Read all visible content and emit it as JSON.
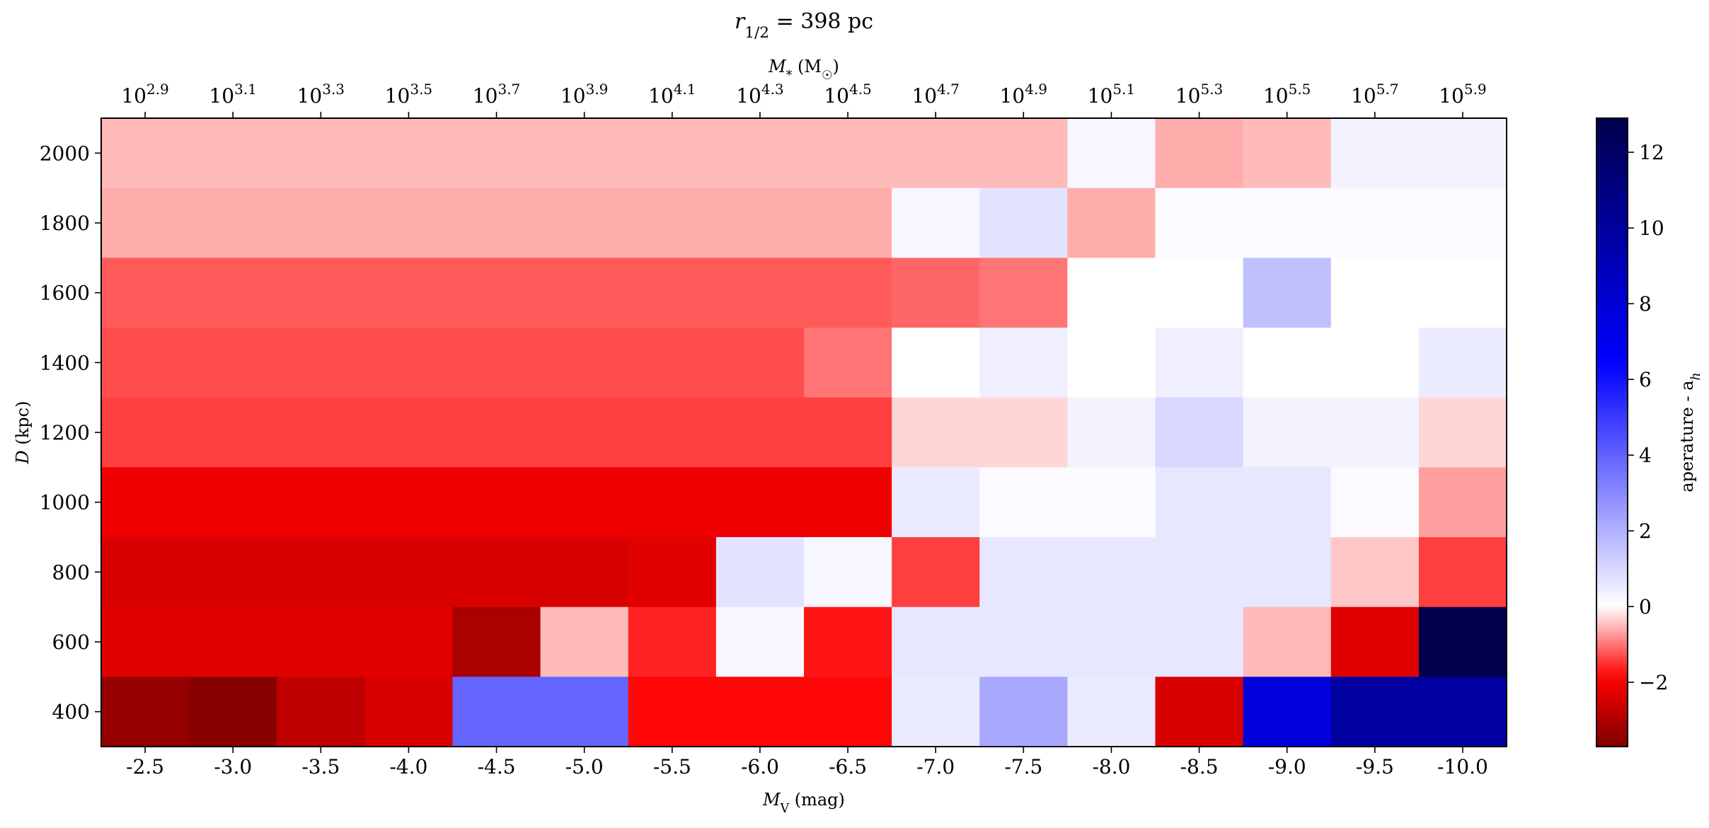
{
  "chart_data": {
    "type": "heatmap",
    "title_math": {
      "base": "r",
      "sub": "1/2",
      "rest": " = 398 pc"
    },
    "xlabel_bottom": {
      "base": "M",
      "sub": "V",
      "rest": " (mag)"
    },
    "xlabel_top": {
      "base": "M",
      "sub": "*",
      "rest": " (M",
      "sub2": "☉",
      "close": ")"
    },
    "ylabel": {
      "base": "D",
      "rest": " (kpc)"
    },
    "colorbar_label": {
      "base": "aperature - a",
      "sub": "h"
    },
    "x_categories": [
      "-2.5",
      "-3.0",
      "-3.5",
      "-4.0",
      "-4.5",
      "-5.0",
      "-5.5",
      "-6.0",
      "-6.5",
      "-7.0",
      "-7.5",
      "-8.0",
      "-8.5",
      "-9.0",
      "-9.5",
      "-10.0"
    ],
    "top_ticks": [
      {
        "at": "-2.5",
        "exp": "2.9"
      },
      {
        "at": "-3.0",
        "exp": "3.1"
      },
      {
        "at": "-3.5",
        "exp": "3.3"
      },
      {
        "at": "-4.0",
        "exp": "3.5"
      },
      {
        "at": "-4.5",
        "exp": "3.7"
      },
      {
        "at": "-5.0",
        "exp": "3.9"
      },
      {
        "at": "-5.5",
        "exp": "4.1"
      },
      {
        "at": "-6.0",
        "exp": "4.3"
      },
      {
        "at": "-6.5",
        "exp": "4.5"
      },
      {
        "at": "-7.0",
        "exp": "4.7"
      },
      {
        "at": "-7.5",
        "exp": "4.9"
      },
      {
        "at": "-8.0",
        "exp": "5.1"
      },
      {
        "at": "-8.5",
        "exp": "5.3"
      },
      {
        "at": "-9.0",
        "exp": "5.5"
      },
      {
        "at": "-9.5",
        "exp": "5.7"
      },
      {
        "at": "-10.0",
        "exp": "5.9"
      }
    ],
    "top_tick_base": "10",
    "y_rows": [
      2000,
      1800,
      1600,
      1400,
      1200,
      1000,
      800,
      600,
      400
    ],
    "ylim": [
      300,
      2100
    ],
    "y_ticks": [
      2000,
      1800,
      1600,
      1400,
      1200,
      1000,
      800,
      600,
      400
    ],
    "colorbar": {
      "cmap": "seismic",
      "range": [
        -3.7,
        12.9
      ],
      "ticks": [
        12,
        10,
        8,
        6,
        4,
        2,
        0,
        -2
      ],
      "tick_labels": [
        "12",
        "10",
        "8",
        "6",
        "4",
        "2",
        "0",
        "−2"
      ]
    },
    "values": [
      [
        -0.5,
        -0.5,
        -0.5,
        -0.5,
        -0.5,
        -0.5,
        -0.5,
        -0.5,
        -0.5,
        -0.5,
        -0.5,
        0.2,
        -0.6,
        -0.5,
        0.3,
        0.3
      ],
      [
        -0.6,
        -0.6,
        -0.6,
        -0.6,
        -0.6,
        -0.6,
        -0.6,
        -0.6,
        -0.6,
        0.2,
        0.7,
        -0.6,
        0.1,
        0.1,
        0.1,
        0.1
      ],
      [
        -1.2,
        -1.2,
        -1.2,
        -1.2,
        -1.2,
        -1.2,
        -1.2,
        -1.2,
        -1.2,
        -1.1,
        -1.0,
        0.0,
        0.0,
        1.6,
        0.0,
        0.0
      ],
      [
        -1.3,
        -1.3,
        -1.3,
        -1.3,
        -1.3,
        -1.3,
        -1.3,
        -1.3,
        -1.0,
        0.0,
        0.4,
        0.0,
        0.4,
        0.0,
        0.0,
        0.5
      ],
      [
        -1.4,
        -1.4,
        -1.4,
        -1.4,
        -1.4,
        -1.4,
        -1.4,
        -1.4,
        -1.4,
        -0.3,
        -0.3,
        0.3,
        1.0,
        0.3,
        0.3,
        -0.3
      ],
      [
        -2.1,
        -2.1,
        -2.1,
        -2.1,
        -2.1,
        -2.1,
        -2.1,
        -2.1,
        -2.1,
        0.5,
        0.1,
        0.1,
        0.6,
        0.6,
        0.1,
        -0.7
      ],
      [
        -2.4,
        -2.4,
        -2.4,
        -2.4,
        -2.4,
        -2.4,
        -2.3,
        0.7,
        0.2,
        -1.4,
        0.6,
        0.6,
        0.6,
        0.6,
        -0.4,
        -1.4
      ],
      [
        -2.3,
        -2.3,
        -2.3,
        -2.3,
        -3.1,
        -0.5,
        -1.6,
        0.2,
        -1.7,
        0.6,
        0.6,
        0.6,
        0.6,
        -0.5,
        -2.3,
        12.9
      ],
      [
        -3.4,
        -3.6,
        -2.8,
        -2.4,
        3.9,
        3.9,
        -1.8,
        -1.8,
        -1.8,
        0.5,
        2.2,
        0.5,
        -2.4,
        7.8,
        9.8,
        9.8
      ]
    ]
  }
}
